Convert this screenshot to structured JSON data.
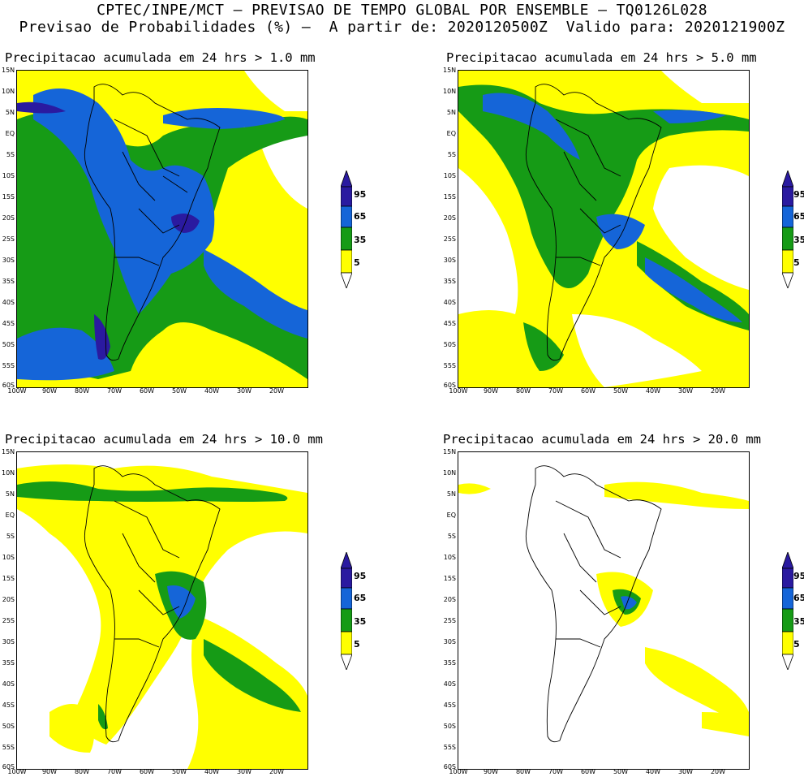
{
  "header": {
    "line1": "CPTEC/INPE/MCT – PREVISAO DE TEMPO GLOBAL POR ENSEMBLE – TQ0126L028",
    "line2": "Previsao de Probabilidades (%) –  A partir de: 2020120500Z  Valido para: 2020121900Z"
  },
  "panels": [
    {
      "title": "Precipitacao acumulada em 24 hrs > 1.0 mm"
    },
    {
      "title": "Precipitacao acumulada em 24 hrs > 5.0 mm"
    },
    {
      "title": "Precipitacao acumulada em 24 hrs > 10.0 mm"
    },
    {
      "title": "Precipitacao acumulada em 24 hrs > 20.0 mm"
    }
  ],
  "axes": {
    "lat_labels": [
      "15N",
      "10N",
      "5N",
      "EQ",
      "5S",
      "10S",
      "15S",
      "20S",
      "25S",
      "30S",
      "35S",
      "40S",
      "45S",
      "50S",
      "55S",
      "60S"
    ],
    "lon_labels": [
      "100W",
      "90W",
      "80W",
      "70W",
      "60W",
      "50W",
      "40W",
      "30W",
      "20W"
    ]
  },
  "legend": {
    "labels": [
      "95",
      "65",
      "35",
      "5"
    ],
    "colors": {
      "yellow": "#ffff00",
      "green": "#169b16",
      "blue": "#1565d8",
      "purple": "#2a1aa0",
      "white": "#ffffff"
    }
  }
}
